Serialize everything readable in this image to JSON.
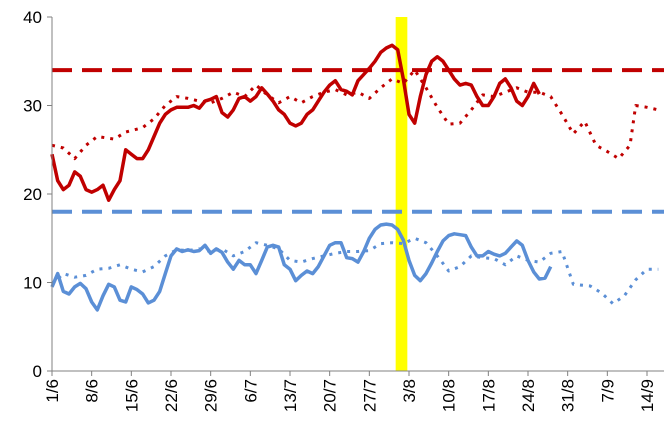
{
  "chart_data": {
    "type": "line",
    "title": "",
    "xlabel": "",
    "ylabel": "",
    "ylim": [
      0,
      40
    ],
    "y_ticks": [
      "0",
      "10",
      "20",
      "30",
      "40"
    ],
    "x_ticks": [
      "1/6",
      "8/6",
      "15/6",
      "22/6",
      "29/6",
      "6/7",
      "13/7",
      "20/7",
      "27/7",
      "3/8",
      "10/8",
      "17/8",
      "24/8",
      "31/8",
      "7/9",
      "14/9"
    ],
    "x_tick_day_index": [
      0,
      7,
      14,
      21,
      28,
      35,
      42,
      49,
      56,
      63,
      70,
      77,
      84,
      91,
      98,
      105
    ],
    "grid": false,
    "legend": "none",
    "highlight_band": {
      "from_day_index": 61,
      "to_day_index": 62,
      "color": "#FFFF00"
    },
    "reference_lines": [
      {
        "y": 34,
        "color": "#C00000",
        "style": "dashed"
      },
      {
        "y": 18,
        "color": "#5B8FD6",
        "style": "dashed"
      }
    ],
    "series": [
      {
        "color": "#C00000",
        "style": "solid",
        "points": [
          [
            0,
            24.5
          ],
          [
            1,
            21.5
          ],
          [
            2,
            20.5
          ],
          [
            3,
            21
          ],
          [
            4,
            22.5
          ],
          [
            5,
            22
          ],
          [
            6,
            20.5
          ],
          [
            7,
            20.2
          ],
          [
            8,
            20.5
          ],
          [
            9,
            21
          ],
          [
            10,
            19.3
          ],
          [
            11,
            20.5
          ],
          [
            12,
            21.5
          ],
          [
            13,
            25
          ],
          [
            14,
            24.5
          ],
          [
            15,
            24
          ],
          [
            16,
            24
          ],
          [
            17,
            25
          ],
          [
            18,
            26.5
          ],
          [
            19,
            28
          ],
          [
            20,
            29
          ],
          [
            21,
            29.5
          ],
          [
            22,
            29.8
          ],
          [
            23,
            29.8
          ],
          [
            24,
            29.8
          ],
          [
            25,
            30
          ],
          [
            26,
            29.7
          ],
          [
            27,
            30.5
          ],
          [
            28,
            30.7
          ],
          [
            29,
            31
          ],
          [
            30,
            29.2
          ],
          [
            31,
            28.7
          ],
          [
            32,
            29.5
          ],
          [
            33,
            30.8
          ],
          [
            34,
            31
          ],
          [
            35,
            30.5
          ],
          [
            36,
            31
          ],
          [
            37,
            32
          ],
          [
            38,
            31.3
          ],
          [
            39,
            30.5
          ],
          [
            40,
            29.5
          ],
          [
            41,
            29
          ],
          [
            42,
            28
          ],
          [
            43,
            27.7
          ],
          [
            44,
            28
          ],
          [
            45,
            29
          ],
          [
            46,
            29.5
          ],
          [
            47,
            30.5
          ],
          [
            48,
            31.5
          ],
          [
            49,
            32.3
          ],
          [
            50,
            32.8
          ],
          [
            51,
            31.8
          ],
          [
            52,
            31.6
          ],
          [
            53,
            31.2
          ],
          [
            54,
            32.8
          ],
          [
            55,
            33.5
          ],
          [
            56,
            34.2
          ],
          [
            57,
            35
          ],
          [
            58,
            36
          ],
          [
            59,
            36.5
          ],
          [
            60,
            36.8
          ],
          [
            61,
            36.3
          ],
          [
            62,
            33
          ],
          [
            63,
            29
          ],
          [
            64,
            28
          ],
          [
            65,
            31
          ],
          [
            66,
            33.5
          ],
          [
            67,
            35
          ],
          [
            68,
            35.5
          ],
          [
            69,
            35
          ],
          [
            70,
            34
          ],
          [
            71,
            33
          ],
          [
            72,
            32.3
          ],
          [
            73,
            32.5
          ],
          [
            74,
            32.3
          ],
          [
            75,
            31
          ],
          [
            76,
            30
          ],
          [
            77,
            30
          ],
          [
            78,
            31
          ],
          [
            79,
            32.5
          ],
          [
            80,
            33
          ],
          [
            81,
            32
          ],
          [
            82,
            30.5
          ],
          [
            83,
            30
          ],
          [
            84,
            31
          ],
          [
            85,
            32.5
          ],
          [
            86,
            31.3
          ]
        ]
      },
      {
        "color": "#C00000",
        "style": "dotted",
        "points": [
          [
            0,
            25.5
          ],
          [
            2,
            25.2
          ],
          [
            4,
            24
          ],
          [
            6,
            25.5
          ],
          [
            8,
            26.5
          ],
          [
            11,
            26.2
          ],
          [
            13,
            27
          ],
          [
            16,
            27.5
          ],
          [
            18,
            28.5
          ],
          [
            20,
            30
          ],
          [
            22,
            31
          ],
          [
            24,
            30.8
          ],
          [
            26,
            30.5
          ],
          [
            28,
            30.3
          ],
          [
            30,
            30.8
          ],
          [
            32,
            31.5
          ],
          [
            34,
            31
          ],
          [
            36,
            32.3
          ],
          [
            38,
            31.2
          ],
          [
            40,
            30.3
          ],
          [
            42,
            31
          ],
          [
            44,
            30.3
          ],
          [
            46,
            31
          ],
          [
            48,
            31.5
          ],
          [
            50,
            31.8
          ],
          [
            52,
            31.2
          ],
          [
            54,
            31.5
          ],
          [
            56,
            30.8
          ],
          [
            58,
            32
          ],
          [
            60,
            33
          ],
          [
            62,
            32.5
          ],
          [
            64,
            34
          ],
          [
            66,
            32
          ],
          [
            68,
            29.8
          ],
          [
            70,
            27.9
          ],
          [
            72,
            28
          ],
          [
            74,
            29.5
          ],
          [
            76,
            31.2
          ],
          [
            78,
            31
          ],
          [
            80,
            31.5
          ],
          [
            82,
            32
          ],
          [
            84,
            31.5
          ],
          [
            86,
            31.5
          ],
          [
            88,
            31
          ],
          [
            90,
            29
          ],
          [
            92,
            26.8
          ],
          [
            94,
            28.2
          ],
          [
            96,
            25.5
          ],
          [
            98,
            24.8
          ],
          [
            100,
            24
          ],
          [
            102,
            25.5
          ],
          [
            103,
            30
          ],
          [
            105,
            29.8
          ],
          [
            107,
            29.5
          ]
        ]
      },
      {
        "color": "#5B8FD6",
        "style": "solid",
        "points": [
          [
            0,
            9.5
          ],
          [
            1,
            11
          ],
          [
            2,
            9
          ],
          [
            3,
            8.7
          ],
          [
            4,
            9.5
          ],
          [
            5,
            9.9
          ],
          [
            6,
            9.3
          ],
          [
            7,
            7.8
          ],
          [
            8,
            6.9
          ],
          [
            9,
            8.5
          ],
          [
            10,
            9.8
          ],
          [
            11,
            9.5
          ],
          [
            12,
            8
          ],
          [
            13,
            7.8
          ],
          [
            14,
            9.5
          ],
          [
            15,
            9.2
          ],
          [
            16,
            8.7
          ],
          [
            17,
            7.7
          ],
          [
            18,
            8
          ],
          [
            19,
            9
          ],
          [
            20,
            11
          ],
          [
            21,
            13
          ],
          [
            22,
            13.8
          ],
          [
            23,
            13.5
          ],
          [
            24,
            13.7
          ],
          [
            25,
            13.5
          ],
          [
            26,
            13.6
          ],
          [
            27,
            14.2
          ],
          [
            28,
            13.3
          ],
          [
            29,
            13.8
          ],
          [
            30,
            13.4
          ],
          [
            31,
            12.3
          ],
          [
            32,
            11.5
          ],
          [
            33,
            12.5
          ],
          [
            34,
            12
          ],
          [
            35,
            12
          ],
          [
            36,
            11
          ],
          [
            37,
            12.5
          ],
          [
            38,
            14
          ],
          [
            39,
            14.2
          ],
          [
            40,
            14
          ],
          [
            41,
            12
          ],
          [
            42,
            11.5
          ],
          [
            43,
            10.2
          ],
          [
            44,
            10.8
          ],
          [
            45,
            11.3
          ],
          [
            46,
            11
          ],
          [
            47,
            11.8
          ],
          [
            48,
            13
          ],
          [
            49,
            14.2
          ],
          [
            50,
            14.5
          ],
          [
            51,
            14.5
          ],
          [
            52,
            12.8
          ],
          [
            53,
            12.7
          ],
          [
            54,
            12.3
          ],
          [
            55,
            13.5
          ],
          [
            56,
            15
          ],
          [
            57,
            16
          ],
          [
            58,
            16.5
          ],
          [
            59,
            16.6
          ],
          [
            60,
            16.5
          ],
          [
            61,
            16
          ],
          [
            62,
            14.8
          ],
          [
            63,
            12.5
          ],
          [
            64,
            10.8
          ],
          [
            65,
            10.2
          ],
          [
            66,
            11
          ],
          [
            67,
            12.2
          ],
          [
            68,
            13.5
          ],
          [
            69,
            14.7
          ],
          [
            70,
            15.3
          ],
          [
            71,
            15.5
          ],
          [
            72,
            15.4
          ],
          [
            73,
            15.3
          ],
          [
            74,
            14
          ],
          [
            75,
            13
          ],
          [
            76,
            13
          ],
          [
            77,
            13.5
          ],
          [
            78,
            13.2
          ],
          [
            79,
            13
          ],
          [
            80,
            13.3
          ],
          [
            81,
            14
          ],
          [
            82,
            14.7
          ],
          [
            83,
            14.2
          ],
          [
            84,
            12.5
          ],
          [
            85,
            11.2
          ],
          [
            86,
            10.4
          ],
          [
            87,
            10.5
          ],
          [
            88,
            11.8
          ]
        ]
      },
      {
        "color": "#5B8FD6",
        "style": "dotted",
        "points": [
          [
            0,
            9.8
          ],
          [
            2,
            11
          ],
          [
            4,
            10.6
          ],
          [
            6,
            10.8
          ],
          [
            8,
            11.5
          ],
          [
            10,
            11.6
          ],
          [
            12,
            12
          ],
          [
            14,
            11.5
          ],
          [
            16,
            11.2
          ],
          [
            18,
            11.8
          ],
          [
            20,
            13
          ],
          [
            22,
            13.7
          ],
          [
            24,
            13.6
          ],
          [
            26,
            13.8
          ],
          [
            28,
            13.5
          ],
          [
            30,
            13.8
          ],
          [
            32,
            13
          ],
          [
            34,
            13.5
          ],
          [
            36,
            14.5
          ],
          [
            38,
            14.2
          ],
          [
            40,
            13.8
          ],
          [
            42,
            12.5
          ],
          [
            44,
            12.3
          ],
          [
            46,
            12.7
          ],
          [
            48,
            13
          ],
          [
            50,
            13.3
          ],
          [
            52,
            13.5
          ],
          [
            54,
            13.5
          ],
          [
            56,
            13.6
          ],
          [
            58,
            14.4
          ],
          [
            60,
            14.5
          ],
          [
            62,
            14.4
          ],
          [
            64,
            15
          ],
          [
            66,
            14.5
          ],
          [
            68,
            13
          ],
          [
            70,
            11.3
          ],
          [
            72,
            11.8
          ],
          [
            74,
            13
          ],
          [
            76,
            12.8
          ],
          [
            78,
            12.7
          ],
          [
            80,
            12
          ],
          [
            82,
            13
          ],
          [
            84,
            12.5
          ],
          [
            86,
            12.3
          ],
          [
            88,
            13.3
          ],
          [
            90,
            13.5
          ],
          [
            92,
            9.8
          ],
          [
            95,
            9.6
          ],
          [
            97,
            8.8
          ],
          [
            99,
            7.6
          ],
          [
            101,
            8.5
          ],
          [
            103,
            10.3
          ],
          [
            105,
            11.5
          ],
          [
            107,
            11.5
          ]
        ]
      }
    ]
  }
}
